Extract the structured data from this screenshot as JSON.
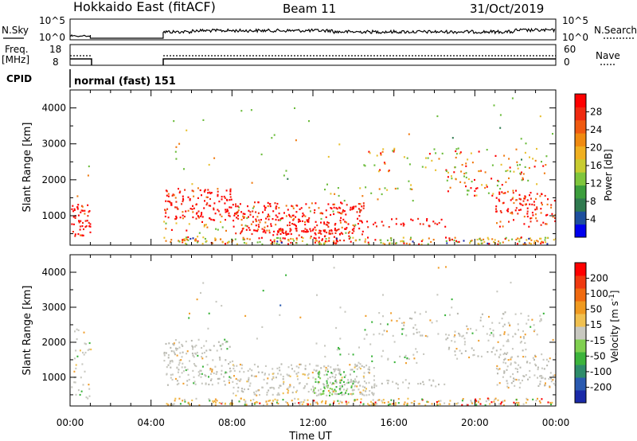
{
  "header": {
    "station": "Hokkaido East (fitACF)",
    "beam": "Beam 11",
    "date": "31/Oct/2019"
  },
  "noise_panel": {
    "left_label": "N.Sky",
    "right_label": "N.Search",
    "left_ticks": [
      "10^5",
      "10^0"
    ],
    "right_ticks": [
      "10^5",
      "10^0"
    ]
  },
  "freq_panel": {
    "left_label_1": "Freq.",
    "left_label_2": "[MHz]",
    "right_label": "Nave",
    "left_ticks": [
      "18",
      "8"
    ],
    "right_ticks": [
      "60",
      "0"
    ]
  },
  "cpid_panel": {
    "label": "CPID",
    "text": "normal (fast) 151"
  },
  "chart_data": [
    {
      "type": "heatmap",
      "title": "",
      "xlabel": "",
      "ylabel": "Slant Range [km]",
      "x_range_hours_ut": [
        0,
        24
      ],
      "ylim": [
        180,
        4500
      ],
      "ytick_labels": [
        "1000",
        "2000",
        "3000",
        "4000"
      ],
      "colorbar": {
        "label": "Power [dB]",
        "ticks": [
          "4",
          "8",
          "12",
          "16",
          "20",
          "24",
          "28"
        ],
        "colors": [
          "#0000ee",
          "#1e4f9e",
          "#2f7a4f",
          "#3c9e3c",
          "#7fc63c",
          "#c8cc30",
          "#f0b020",
          "#f08a10",
          "#f05a10",
          "#f02a10",
          "#ff0000"
        ]
      }
    },
    {
      "type": "heatmap",
      "title": "",
      "xlabel": "Time UT",
      "ylabel": "Slant Range [km]",
      "x_range_hours_ut": [
        0,
        24
      ],
      "ylim": [
        180,
        4500
      ],
      "xtick_labels": [
        "00:00",
        "04:00",
        "08:00",
        "12:00",
        "16:00",
        "20:00",
        "00:00"
      ],
      "ytick_labels": [
        "1000",
        "2000",
        "3000",
        "4000"
      ],
      "colorbar": {
        "label": "Velocity [m s^-1]",
        "ticks": [
          "200",
          "100",
          "50",
          "15",
          "-15",
          "-50",
          "-100",
          "-200"
        ],
        "colors": [
          "#1a2aa8",
          "#2a5ab0",
          "#2e8c6a",
          "#3cb43c",
          "#80d050",
          "#c8c8c0",
          "#f0c050",
          "#f09a20",
          "#f06a10",
          "#f03a10",
          "#ff0000"
        ]
      }
    }
  ],
  "colors": {
    "power_red": "#ff0000",
    "power_orange": "#f07a10",
    "power_green": "#6cbc3c",
    "vel_grey": "#c8c8c0",
    "vel_green": "#3cb43c",
    "vel_orange": "#f0a030"
  }
}
